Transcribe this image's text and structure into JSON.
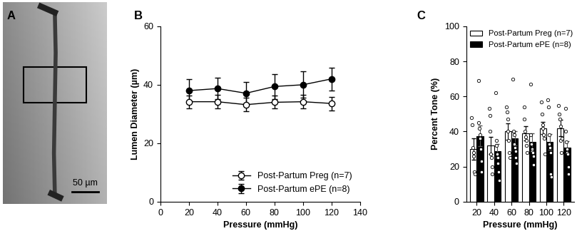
{
  "image": {
    "panel": "A",
    "scale_bar_label": "50 µm"
  },
  "chart_data": [
    {
      "type": "line",
      "panel": "B",
      "x": [
        20,
        40,
        60,
        80,
        100,
        120
      ],
      "xlabel": "Pressure (mmHg)",
      "ylabel": "Lumen Diameter (µm)",
      "xlim": [
        0,
        140
      ],
      "xticks": [
        0,
        20,
        40,
        60,
        80,
        100,
        120,
        140
      ],
      "ylim": [
        0,
        60
      ],
      "yticks": [
        0,
        20,
        40,
        60
      ],
      "legend": "lower right",
      "series": [
        {
          "name": "Post-Partum Preg (n=7)",
          "color": "#ffffff",
          "marker": "o",
          "line_style": "solid",
          "values": [
            34.2,
            34.2,
            33.2,
            34.0,
            34.2,
            33.6
          ],
          "errors": [
            2.2,
            2.3,
            2.3,
            2.2,
            2.3,
            2.3
          ]
        },
        {
          "name": "Post-Partum ePE (n=8)",
          "color": "#000000",
          "marker": "o",
          "line_style": "solid",
          "values": [
            38.0,
            38.7,
            37.1,
            39.4,
            40.0,
            42.0
          ],
          "errors": [
            3.8,
            3.6,
            3.8,
            4.2,
            4.5,
            3.9
          ]
        }
      ]
    },
    {
      "type": "bar",
      "panel": "C",
      "categories": [
        "20",
        "40",
        "60",
        "80",
        "100",
        "120"
      ],
      "xlabel": "Pressure (mmHg)",
      "ylabel": "Percent Tone (%)",
      "ylim": [
        0,
        100
      ],
      "yticks": [
        0,
        20,
        40,
        60,
        80,
        100
      ],
      "legend": "upper left",
      "series": [
        {
          "name": "Post-Partum Preg (n=7)",
          "color": "#ffffff",
          "values": [
            30,
            32,
            40,
            39,
            42,
            42
          ],
          "errors": [
            6,
            5,
            4.5,
            4,
            3.5,
            4.5
          ],
          "points": [
            [
              48,
              44,
              31,
              28,
              26,
              17,
              16
            ],
            [
              53,
              49,
              40,
              27,
              25,
              20,
              16
            ],
            [
              54,
              51,
              47,
              40,
              35,
              28,
              25
            ],
            [
              54,
              47,
              40,
              37,
              35,
              32,
              28
            ],
            [
              57,
              50,
              44,
              42,
              38,
              36,
              27
            ],
            [
              55,
              50,
              47,
              43,
              35,
              28,
              36
            ]
          ]
        },
        {
          "name": "Post-Partum ePE (n=8)",
          "color": "#000000",
          "values": [
            37.5,
            29,
            36,
            34,
            34,
            31
          ],
          "errors": [
            6,
            4,
            4,
            5,
            4.5,
            3.5
          ],
          "points": [
            [
              69,
              45,
              42,
              38,
              36,
              30,
              23,
              17
            ],
            [
              62,
              35,
              32,
              27,
              25,
              22,
              17,
              12
            ],
            [
              70,
              40,
              38,
              33,
              31,
              29,
              25,
              22
            ],
            [
              67,
              38,
              33,
              30,
              29,
              28,
              26,
              21
            ],
            [
              58,
              54,
              38,
              33,
              31,
              28,
              16,
              14
            ],
            [
              53,
              40,
              34,
              30,
              28,
              27,
              20,
              16
            ]
          ]
        }
      ]
    }
  ]
}
